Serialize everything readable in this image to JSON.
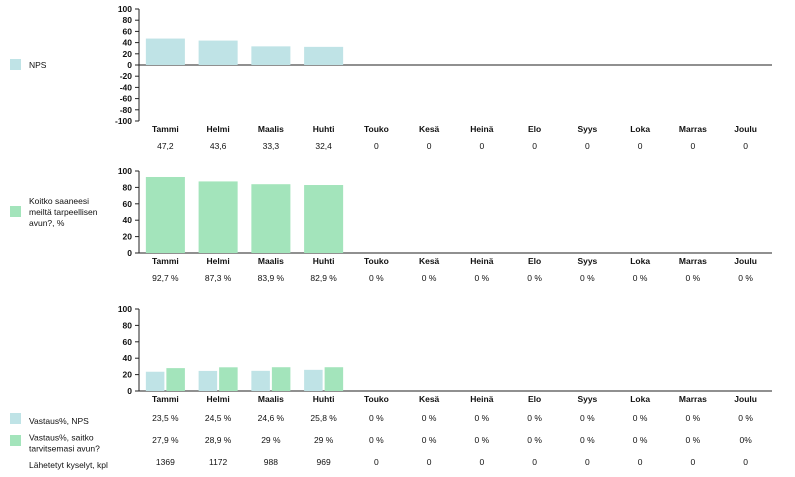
{
  "colors": {
    "nps": "#bfe3e6",
    "help": "#a3e4bb",
    "axis": "#222222"
  },
  "months": [
    "Tammi",
    "Helmi",
    "Maalis",
    "Huhti",
    "Touko",
    "Kesä",
    "Heinä",
    "Elo",
    "Syys",
    "Loka",
    "Marras",
    "Joulu"
  ],
  "chart_data": [
    {
      "type": "bar",
      "title": "NPS",
      "ylim": [
        -100,
        100
      ],
      "yticks": [
        100,
        80,
        60,
        40,
        20,
        0,
        -20,
        -40,
        -60,
        -80,
        -100
      ],
      "legend": [
        {
          "label": "NPS",
          "color": "#bfe3e6"
        }
      ],
      "series": [
        {
          "name": "NPS",
          "color": "#bfe3e6",
          "values": [
            47.2,
            43.6,
            33.3,
            32.4,
            0,
            0,
            0,
            0,
            0,
            0,
            0,
            0
          ]
        }
      ],
      "table_rows": [
        {
          "label": "",
          "values": [
            "47,2",
            "43,6",
            "33,3",
            "32,4",
            "0",
            "0",
            "0",
            "0",
            "0",
            "0",
            "0",
            "0"
          ]
        }
      ]
    },
    {
      "type": "bar",
      "title": "Koitko saaneesi meiltä tarpeellisen avun?, %",
      "ylim": [
        0,
        100
      ],
      "yticks": [
        100,
        80,
        60,
        40,
        20,
        0
      ],
      "legend": [
        {
          "label": "Koitko saaneesi meiltä tarpeellisen avun?, %",
          "lines": [
            "Koitko saaneesi",
            "meiltä tarpeellisen",
            "avun?, %"
          ],
          "color": "#a3e4bb"
        }
      ],
      "series": [
        {
          "name": "Koitko saaneesi meiltä tarpeellisen avun?, %",
          "color": "#a3e4bb",
          "values": [
            92.7,
            87.3,
            83.9,
            82.9,
            0,
            0,
            0,
            0,
            0,
            0,
            0,
            0
          ]
        }
      ],
      "table_rows": [
        {
          "label": "",
          "values": [
            "92,7 %",
            "87,3 %",
            "83,9 %",
            "82,9 %",
            "0 %",
            "0 %",
            "0 %",
            "0 %",
            "0 %",
            "0 %",
            "0 %",
            "0 %"
          ]
        }
      ]
    },
    {
      "type": "bar",
      "title": "Vastaus%",
      "ylim": [
        0,
        100
      ],
      "yticks": [
        100,
        80,
        60,
        40,
        20,
        0
      ],
      "series": [
        {
          "name": "Vastaus%, NPS",
          "color": "#bfe3e6",
          "values": [
            23.5,
            24.5,
            24.6,
            25.8,
            0,
            0,
            0,
            0,
            0,
            0,
            0,
            0
          ]
        },
        {
          "name": "Vastaus%, saitko tarvitsemasi avun?",
          "color": "#a3e4bb",
          "values": [
            27.9,
            28.9,
            29,
            29,
            0,
            0,
            0,
            0,
            0,
            0,
            0,
            0
          ]
        }
      ],
      "table_rows": [
        {
          "label": "Vastaus%, NPS",
          "lines": [
            "Vastaus%, NPS"
          ],
          "color": "#bfe3e6",
          "values": [
            "23,5 %",
            "24,5 %",
            "24,6 %",
            "25,8 %",
            "0 %",
            "0 %",
            "0 %",
            "0 %",
            "0 %",
            "0 %",
            "0 %",
            "0 %"
          ]
        },
        {
          "label": "Vastaus%, saitko tarvitsemasi avun?",
          "lines": [
            "Vastaus%, saitko",
            "tarvitsemasi avun?"
          ],
          "color": "#a3e4bb",
          "values": [
            "27,9 %",
            "28,9 %",
            "29 %",
            "29 %",
            "0 %",
            "0 %",
            "0 %",
            "0 %",
            "0 %",
            "0 %",
            "0 %",
            "0%"
          ]
        },
        {
          "label": "Lähetetyt kyselyt, kpl",
          "lines": [
            "Lähetetyt kyselyt, kpl"
          ],
          "color": null,
          "values": [
            "1369",
            "1172",
            "988",
            "969",
            "0",
            "0",
            "0",
            "0",
            "0",
            "0",
            "0",
            "0"
          ]
        }
      ]
    }
  ]
}
